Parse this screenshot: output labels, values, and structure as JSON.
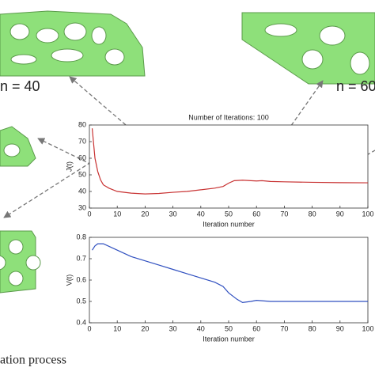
{
  "labels": [
    "n = 40",
    "n = 60"
  ],
  "caption": "ation process",
  "chart_data": [
    {
      "type": "line",
      "title": "Number of Iterations: 100",
      "xlabel": "Iteration number",
      "ylabel": "J(t)",
      "xlim": [
        0,
        100
      ],
      "ylim": [
        30,
        80
      ],
      "xticks": [
        0,
        10,
        20,
        30,
        40,
        50,
        60,
        70,
        80,
        90,
        100
      ],
      "yticks": [
        30,
        40,
        50,
        60,
        70,
        80
      ],
      "series": [
        {
          "name": "J(t)",
          "color": "#c83232",
          "x": [
            1,
            2,
            3,
            4,
            5,
            7,
            10,
            15,
            20,
            25,
            30,
            35,
            40,
            45,
            48,
            50,
            52,
            55,
            58,
            60,
            62,
            65,
            70,
            80,
            90,
            100
          ],
          "values": [
            78,
            60,
            52,
            47,
            44,
            42,
            40,
            39,
            38.5,
            38.8,
            39.5,
            40,
            41,
            42,
            43,
            45,
            46.5,
            46.8,
            46.5,
            46.3,
            46.5,
            46,
            45.8,
            45.5,
            45.3,
            45.2
          ]
        }
      ]
    },
    {
      "type": "line",
      "xlabel": "Iteration number",
      "ylabel": "V(t)",
      "xlim": [
        0,
        100
      ],
      "ylim": [
        0.4,
        0.8
      ],
      "xticks": [
        0,
        10,
        20,
        30,
        40,
        50,
        60,
        70,
        80,
        90,
        100
      ],
      "yticks": [
        0.4,
        0.5,
        0.6,
        0.7,
        0.8
      ],
      "series": [
        {
          "name": "V(t)",
          "color": "#3050c0",
          "x": [
            1,
            2,
            3,
            5,
            10,
            15,
            20,
            25,
            30,
            35,
            40,
            45,
            48,
            50,
            53,
            55,
            58,
            60,
            65,
            70,
            80,
            90,
            100
          ],
          "values": [
            0.74,
            0.76,
            0.77,
            0.77,
            0.74,
            0.71,
            0.69,
            0.67,
            0.65,
            0.63,
            0.61,
            0.59,
            0.57,
            0.54,
            0.51,
            0.495,
            0.5,
            0.505,
            0.5,
            0.5,
            0.5,
            0.5,
            0.5
          ]
        }
      ]
    }
  ]
}
